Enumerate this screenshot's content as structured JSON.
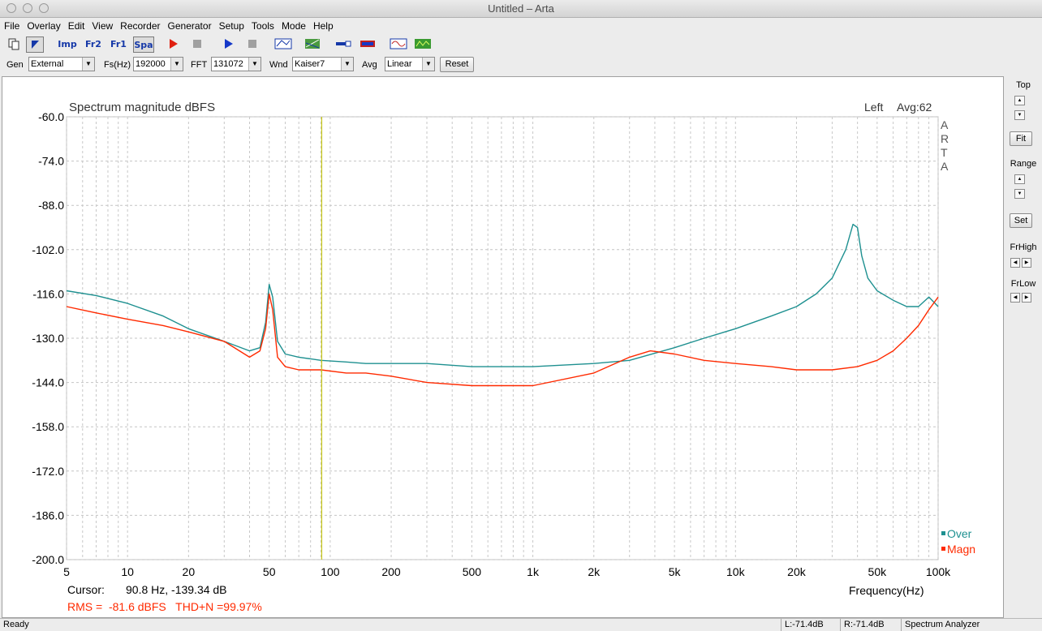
{
  "window": {
    "title": "Untitled – Arta"
  },
  "menu": [
    "File",
    "Overlay",
    "Edit",
    "View",
    "Recorder",
    "Generator",
    "Setup",
    "Tools",
    "Mode",
    "Help"
  ],
  "toolbar": {
    "buttons": [
      {
        "name": "copy-icon"
      },
      {
        "name": "cursor-icon",
        "active": true
      },
      {
        "label": "Imp",
        "name": "impulse-mode-button"
      },
      {
        "label": "Fr2",
        "name": "fr2-mode-button"
      },
      {
        "label": "Fr1",
        "name": "fr1-mode-button"
      },
      {
        "label": "Spa",
        "name": "spa-mode-button",
        "active": true
      },
      {
        "name": "record-play-icon"
      },
      {
        "name": "record-stop-icon"
      },
      {
        "name": "play-icon"
      },
      {
        "name": "stop-icon"
      },
      {
        "name": "abc-icon"
      },
      {
        "name": "grid-icon"
      },
      {
        "name": "probe-icon"
      },
      {
        "name": "battery-icon"
      },
      {
        "name": "wave-icon"
      },
      {
        "name": "scope-icon"
      }
    ]
  },
  "controls": {
    "gen_label": "Gen",
    "gen_value": "External",
    "fs_label": "Fs(Hz)",
    "fs_value": "192000",
    "fft_label": "FFT",
    "fft_value": "131072",
    "wnd_label": "Wnd",
    "wnd_value": "Kaiser7",
    "avg_label": "Avg",
    "avg_value": "Linear",
    "reset_label": "Reset"
  },
  "side_panel": {
    "top_label": "Top",
    "fit_label": "Fit",
    "range_label": "Range",
    "set_label": "Set",
    "frhigh_label": "FrHigh",
    "frlow_label": "FrLow"
  },
  "graph": {
    "title": "Spectrum magnitude dBFS",
    "channel": "Left",
    "avg": "Avg:62",
    "watermark": [
      "A",
      "R",
      "T",
      "A"
    ],
    "cursor_label": "Cursor:",
    "cursor_value": "90.8 Hz, -139.34 dB",
    "rms_text": "RMS =  -81.6 dBFS   THD+N =99.97%",
    "legend": [
      {
        "name": "Over",
        "color": "#1e9090"
      },
      {
        "name": "Magn",
        "color": "#ff2a00"
      }
    ]
  },
  "status": {
    "ready": "Ready",
    "left_level": "L:-71.4dB",
    "right_level": "R:-71.4dB",
    "mode": "Spectrum Analyzer"
  },
  "chart_data": {
    "type": "line",
    "xscale": "log",
    "xlim": [
      5,
      100000
    ],
    "ylim": [
      -200,
      -60
    ],
    "xlabel": "Frequency(Hz)",
    "ylabel": "",
    "yticks": [
      -60,
      -74,
      -88,
      -102,
      -116,
      -130,
      -144,
      -158,
      -172,
      -186,
      -200
    ],
    "ytick_labels": [
      "-60.0",
      "-74.0",
      "-88.0",
      "-102.0",
      "-116.0",
      "-130.0",
      "-144.0",
      "-158.0",
      "-172.0",
      "-186.0",
      "-200.0"
    ],
    "xticks": [
      5,
      10,
      20,
      50,
      100,
      200,
      500,
      1000,
      2000,
      5000,
      10000,
      20000,
      50000,
      100000
    ],
    "xtick_labels": [
      "5",
      "10",
      "20",
      "50",
      "100",
      "200",
      "500",
      "1k",
      "2k",
      "5k",
      "10k",
      "20k",
      "50k",
      "100k"
    ],
    "cursor_x": 90.8,
    "grid": true,
    "series": [
      {
        "name": "Over",
        "color": "#1e9090",
        "x": [
          5,
          7,
          10,
          15,
          20,
          30,
          40,
          45,
          48,
          50,
          52,
          55,
          60,
          70,
          90,
          120,
          150,
          200,
          300,
          500,
          1000,
          2000,
          3000,
          5000,
          7000,
          10000,
          15000,
          20000,
          25000,
          30000,
          35000,
          38000,
          40000,
          42000,
          45000,
          50000,
          60000,
          70000,
          80000,
          90000,
          100000
        ],
        "y": [
          -115,
          -116.5,
          -119,
          -123,
          -127,
          -131,
          -134,
          -133,
          -125,
          -113,
          -117,
          -131,
          -135,
          -136,
          -137,
          -137.5,
          -138,
          -138,
          -138,
          -139,
          -139,
          -138,
          -137,
          -133,
          -130,
          -127,
          -123,
          -120,
          -116,
          -111,
          -102,
          -94,
          -95,
          -104,
          -111,
          -115,
          -118,
          -120,
          -120,
          -117,
          -120
        ]
      },
      {
        "name": "Magn",
        "color": "#ff2a00",
        "x": [
          5,
          7,
          10,
          15,
          20,
          30,
          40,
          45,
          48,
          50,
          52,
          55,
          60,
          70,
          90,
          120,
          150,
          200,
          300,
          500,
          1000,
          2000,
          3000,
          3800,
          5000,
          7000,
          10000,
          15000,
          20000,
          30000,
          40000,
          50000,
          60000,
          70000,
          80000,
          90000,
          100000
        ],
        "y": [
          -120,
          -122,
          -124,
          -126,
          -128,
          -131,
          -136,
          -134,
          -127,
          -116,
          -121,
          -136,
          -139,
          -140,
          -140,
          -141,
          -141,
          -142,
          -144,
          -145,
          -145,
          -141,
          -136,
          -134,
          -135,
          -137,
          -138,
          -139,
          -140,
          -140,
          -139,
          -137,
          -134,
          -130,
          -126,
          -121,
          -117
        ]
      }
    ]
  }
}
